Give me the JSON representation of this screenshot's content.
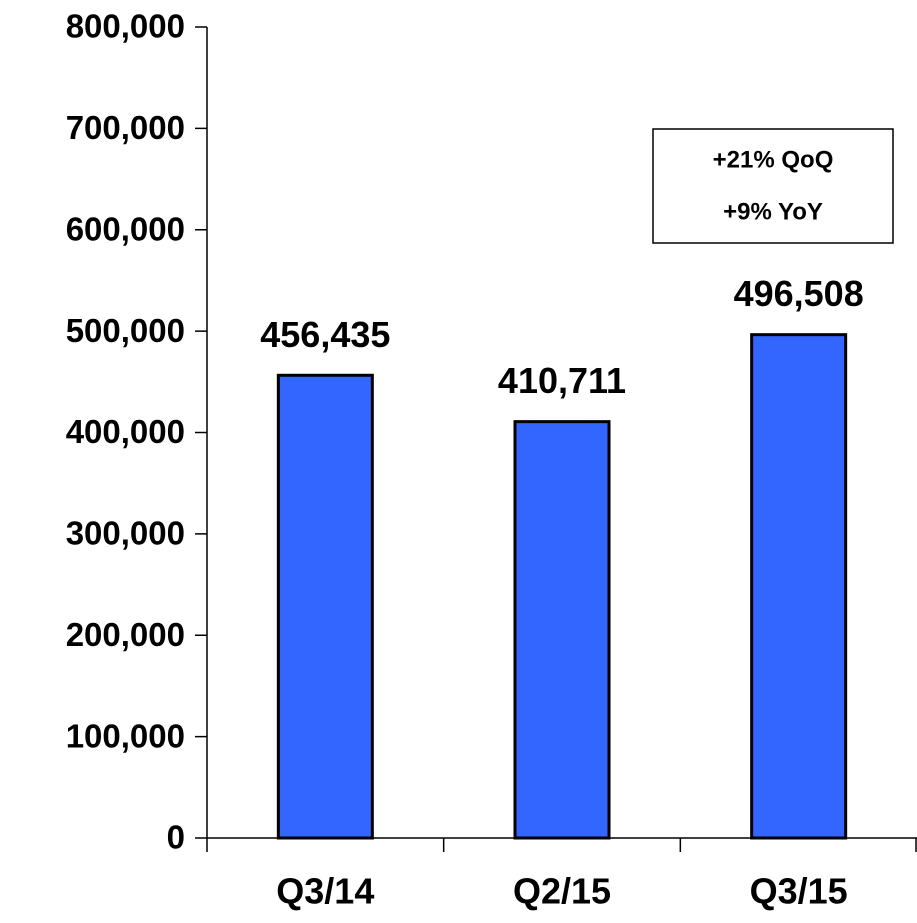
{
  "chart_data": {
    "type": "bar",
    "categories": [
      "Q3/14",
      "Q2/15",
      "Q3/15"
    ],
    "values": [
      456435,
      410711,
      496508
    ],
    "value_labels": [
      "456,435",
      "410,711",
      "496,508"
    ],
    "color": "#3366ff",
    "ylim": [
      0,
      800000
    ],
    "yticks": [
      0,
      {
        "value": 100000,
        "label": "100,000"
      },
      {
        "value": 200000,
        "label": "200,000"
      },
      {
        "value": 300000,
        "label": "300,000"
      },
      {
        "value": 400000,
        "label": "400,000"
      },
      {
        "value": 500000,
        "label": "500,000"
      },
      {
        "value": 600000,
        "label": "600,000"
      },
      {
        "value": 700000,
        "label": "700,000"
      },
      {
        "value": 800000,
        "label": "800,000"
      }
    ],
    "annotations": [
      "+21% QoQ",
      "+9% YoY"
    ],
    "grid": false
  }
}
